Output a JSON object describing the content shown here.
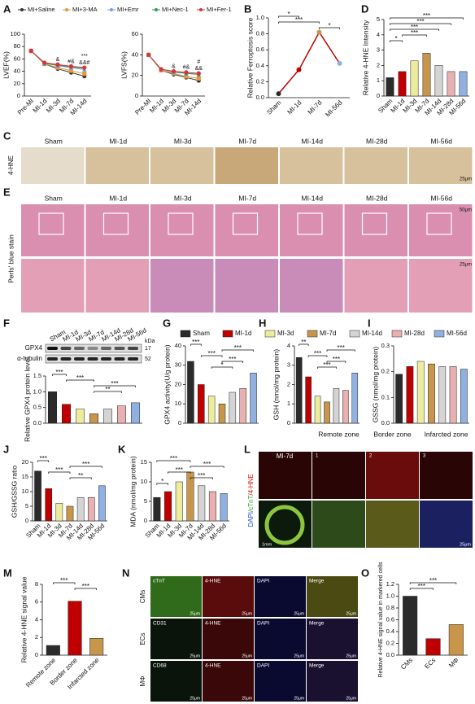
{
  "panel_letters": [
    "A",
    "B",
    "C",
    "D",
    "E",
    "F",
    "G",
    "H",
    "I",
    "J",
    "K",
    "L",
    "M",
    "N",
    "O"
  ],
  "bar_legend": {
    "names": [
      "Sham",
      "MI-1d",
      "MI-3d",
      "MI-7d",
      "MI-14d",
      "MI-28d",
      "MI-56d"
    ],
    "colors": [
      "#2b2b2b",
      "#c00000",
      "#ecec9c",
      "#c8964b",
      "#d4d4d4",
      "#e8b0b0",
      "#8fb0e0"
    ]
  },
  "image_panels": {
    "C": {
      "row_label": "4-HNE",
      "columns": [
        "Sham",
        "MI-1d",
        "MI-3d",
        "MI-7d",
        "MI-14d",
        "MI-28d",
        "MI-56d"
      ],
      "scale": "25μm"
    },
    "E": {
      "row_label": "Perls' blue stain",
      "columns": [
        "Sham",
        "MI-1d",
        "MI-3d",
        "MI-7d",
        "MI-14d",
        "MI-28d",
        "MI-56d"
      ],
      "scales": [
        "50μm",
        "25μm"
      ]
    },
    "F_blot": {
      "lanes": [
        "Sham",
        "MI-1d",
        "MI-3d",
        "MI-7d",
        "MI-14d",
        "MI-28d",
        "MI-56d"
      ],
      "bands": [
        "GPX4",
        "α-tubulin"
      ],
      "unit": "kDa",
      "sizes": [
        17,
        52
      ]
    },
    "L": {
      "title": "MI-7d",
      "zones": [
        "Remote zone",
        "Border zone",
        "Infarcted zone"
      ],
      "stain": [
        "DAPI",
        "/cTnT",
        "/4-HNE"
      ],
      "insets": [
        "1",
        "2",
        "3"
      ],
      "scales": [
        "1mm",
        "25μm"
      ]
    },
    "N": {
      "rows": [
        "CMs",
        "ECs",
        "MΦ"
      ],
      "markers": [
        "cTnT",
        "CD31",
        "CD68"
      ],
      "channels": [
        "4-HNE",
        "DAPI",
        "Merge"
      ],
      "scale": "25μm"
    }
  },
  "chart_data": [
    {
      "type": "line",
      "ylabel": "LVEF(%)",
      "categories": [
        "Pre-MI",
        "MI-1d",
        "MI-3d",
        "MI-7d",
        "MI-14d"
      ],
      "ylim": [
        0,
        100
      ],
      "yticks": [
        0,
        20,
        40,
        60,
        80,
        100
      ],
      "series": [
        {
          "name": "MI+Saline",
          "color": "#333333",
          "marker": "circle",
          "values": [
            73,
            52,
            44,
            38,
            32
          ]
        },
        {
          "name": "MI+3-MA",
          "color": "#e39a3b",
          "marker": "square",
          "values": [
            73,
            52,
            46,
            41,
            36
          ]
        },
        {
          "name": "MI+Emr",
          "color": "#6fa0dc",
          "marker": "triangle",
          "values": [
            73,
            53,
            49,
            46,
            43
          ]
        },
        {
          "name": "MI+Nec-1",
          "color": "#2e9e52",
          "marker": "diamond",
          "values": [
            73,
            53,
            50,
            47,
            45
          ]
        },
        {
          "name": "MI+Fer-1",
          "color": "#d8323c",
          "marker": "circle",
          "values": [
            73,
            54,
            51,
            48,
            46
          ]
        }
      ],
      "annotations": [
        {
          "text": "&",
          "at": 2
        },
        {
          "text": "#&",
          "at": 3
        },
        {
          "text": "&&#",
          "at": 4
        },
        {
          "text": "***",
          "at": 4
        }
      ]
    },
    {
      "type": "line",
      "ylabel": "LVFS(%)",
      "categories": [
        "Pre-MI",
        "MI-1d",
        "MI-3d",
        "MI-7d",
        "MI-14d"
      ],
      "ylim": [
        0,
        60
      ],
      "yticks": [
        0,
        20,
        40,
        60
      ],
      "series": [
        {
          "color": "#333333",
          "marker": "circle",
          "values": [
            40,
            25,
            21,
            18,
            15
          ]
        },
        {
          "color": "#e39a3b",
          "marker": "square",
          "values": [
            40,
            25,
            22,
            19,
            17
          ]
        },
        {
          "color": "#6fa0dc",
          "marker": "triangle",
          "values": [
            40,
            26,
            23,
            22,
            21
          ]
        },
        {
          "color": "#2e9e52",
          "marker": "diamond",
          "values": [
            40,
            26,
            24,
            22,
            21
          ]
        },
        {
          "color": "#d8323c",
          "marker": "circle",
          "values": [
            40,
            26,
            24,
            23,
            22
          ]
        }
      ],
      "annotations": [
        {
          "text": "&",
          "at": 2
        },
        {
          "text": "#&",
          "at": 3
        },
        {
          "text": "&&",
          "at": 4
        },
        {
          "text": "#",
          "at": 4
        }
      ]
    },
    {
      "type": "point_line",
      "ylabel": "Relative Ferroptosis score",
      "categories": [
        "Sham",
        "MI-1d",
        "MI-7d",
        "MI-56d"
      ],
      "values": [
        0.05,
        0.35,
        0.82,
        0.43
      ],
      "color": "#c00000",
      "point_colors": [
        "#2b2b2b",
        "#c00000",
        "#c8964b",
        "#8fb0e0"
      ],
      "ylim": [
        0,
        1.0
      ],
      "yticks": [
        {
          "value": 0,
          "label": "0.0"
        },
        0.2,
        0.4,
        0.6,
        0.8,
        {
          "value": 1,
          "label": "1.0"
        }
      ],
      "annotations": [
        {
          "text": "*",
          "from": 0,
          "to": 1
        },
        {
          "text": "***",
          "from": 0,
          "to": 2
        },
        {
          "text": "*",
          "from": 2,
          "to": 3
        }
      ]
    },
    {
      "type": "bar",
      "ylabel": "Relative 4-HNE Intensity",
      "categories": [
        "Sham",
        "MI-1d",
        "MI-3d",
        "MI-7d",
        "MI-14d",
        "MI-28d",
        "MI-56d"
      ],
      "values": [
        1.2,
        1.6,
        2.3,
        2.8,
        2.0,
        1.6,
        1.6
      ],
      "colors": [
        "#2b2b2b",
        "#c00000",
        "#ecec9c",
        "#c8964b",
        "#d4d4d4",
        "#e8b0b0",
        "#8fb0e0"
      ],
      "ylim": [
        0,
        5
      ],
      "yticks": [
        0,
        1,
        2,
        3,
        4,
        5
      ],
      "annotations": [
        {
          "text": "***",
          "from": 0,
          "to": 6
        },
        {
          "text": "***",
          "from": 0,
          "to": 5
        },
        {
          "text": "***",
          "from": 0,
          "to": 4
        },
        {
          "text": "***",
          "from": 1,
          "to": 3
        },
        {
          "text": "*",
          "from": 0,
          "to": 1
        }
      ]
    },
    {
      "type": "bar",
      "ylabel": "Relative GPX4 protein level",
      "categories": [
        "Sham",
        "MI-1d",
        "MI-3d",
        "MI-7d",
        "MI-14d",
        "MI-28d",
        "MI-56d"
      ],
      "values": [
        1.0,
        0.6,
        0.45,
        0.3,
        0.45,
        0.55,
        0.65
      ],
      "colors": [
        "#2b2b2b",
        "#c00000",
        "#ecec9c",
        "#c8964b",
        "#d4d4d4",
        "#e8b0b0",
        "#8fb0e0"
      ],
      "ylim": [
        0,
        1.5
      ],
      "yticks": [
        {
          "value": 0,
          "label": "0.0"
        },
        0.5,
        {
          "value": 1,
          "label": "1.0"
        },
        1.5
      ],
      "hide_categories": true,
      "annotations": [
        {
          "text": "***",
          "from": 0,
          "to": 1
        },
        {
          "text": "***",
          "from": 1,
          "to": 3
        },
        {
          "text": "***",
          "from": 3,
          "to": 6
        },
        {
          "text": "**",
          "from": 3,
          "to": 5
        }
      ]
    },
    {
      "type": "bar",
      "ylabel": "GPX4 activity(U/g protein)",
      "categories": [
        "Sham",
        "MI-1d",
        "MI-3d",
        "MI-7d",
        "MI-14d",
        "MI-28d",
        "MI-56d"
      ],
      "values": [
        32,
        20,
        14,
        10,
        16,
        18,
        26
      ],
      "colors": [
        "#2b2b2b",
        "#c00000",
        "#ecec9c",
        "#c8964b",
        "#d4d4d4",
        "#e8b0b0",
        "#8fb0e0"
      ],
      "ylim": [
        0,
        40
      ],
      "yticks": [
        0,
        10,
        20,
        30,
        40
      ],
      "hide_categories": true,
      "annotations": [
        {
          "text": "***",
          "from": 0,
          "to": 1
        },
        {
          "text": "***",
          "from": 3,
          "to": 6
        },
        {
          "text": "***",
          "from": 1,
          "to": 3
        },
        {
          "text": "***",
          "from": 3,
          "to": 5
        },
        {
          "text": "*",
          "from": 2,
          "to": 4
        }
      ]
    },
    {
      "type": "bar",
      "ylabel": "GSH (nmol/mg protein)",
      "categories": [
        "Sham",
        "MI-1d",
        "MI-3d",
        "MI-7d",
        "MI-14d",
        "MI-28d",
        "MI-56d"
      ],
      "values": [
        3.4,
        2.4,
        1.4,
        1.1,
        1.8,
        1.7,
        2.6
      ],
      "colors": [
        "#2b2b2b",
        "#c00000",
        "#ecec9c",
        "#c8964b",
        "#d4d4d4",
        "#e8b0b0",
        "#8fb0e0"
      ],
      "ylim": [
        0,
        4
      ],
      "yticks": [
        0,
        1,
        2,
        3,
        4
      ],
      "hide_categories": true,
      "annotations": [
        {
          "text": "**",
          "from": 0,
          "to": 1
        },
        {
          "text": "***",
          "from": 3,
          "to": 6
        },
        {
          "text": "***",
          "from": 1,
          "to": 3
        },
        {
          "text": "***",
          "from": 3,
          "to": 5
        },
        {
          "text": "***",
          "from": 2,
          "to": 4
        }
      ]
    },
    {
      "type": "bar",
      "ylabel": "GSSG (nmol/mg protein)",
      "categories": [
        "Sham",
        "MI-1d",
        "MI-3d",
        "MI-7d",
        "MI-14d",
        "MI-28d",
        "MI-56d"
      ],
      "values": [
        0.19,
        0.22,
        0.24,
        0.23,
        0.22,
        0.22,
        0.21
      ],
      "colors": [
        "#2b2b2b",
        "#c00000",
        "#ecec9c",
        "#c8964b",
        "#d4d4d4",
        "#e8b0b0",
        "#8fb0e0"
      ],
      "ylim": [
        0,
        0.3
      ],
      "yticks": [
        {
          "value": 0,
          "label": "0.0"
        },
        0.1,
        0.2,
        0.3
      ],
      "hide_categories": true,
      "annotations": []
    },
    {
      "type": "bar",
      "ylabel": "GSH/GSSG ratio",
      "categories": [
        "Sham",
        "MI-1d",
        "MI-3d",
        "MI-7d",
        "MI-14d",
        "MI-28d",
        "MI-56d"
      ],
      "values": [
        17,
        11,
        6,
        5,
        8,
        8,
        12
      ],
      "colors": [
        "#2b2b2b",
        "#c00000",
        "#ecec9c",
        "#c8964b",
        "#d4d4d4",
        "#e8b0b0",
        "#8fb0e0"
      ],
      "ylim": [
        0,
        20
      ],
      "yticks": [
        0,
        5,
        10,
        15,
        20
      ],
      "annotations": [
        {
          "text": "***",
          "from": 0,
          "to": 1
        },
        {
          "text": "***",
          "from": 3,
          "to": 6
        },
        {
          "text": "***",
          "from": 1,
          "to": 3
        },
        {
          "text": "**",
          "from": 3,
          "to": 5
        }
      ]
    },
    {
      "type": "bar",
      "ylabel": "MDA (nmol/mg protein)",
      "categories": [
        "Sham",
        "MI-1d",
        "MI-3d",
        "MI-7d",
        "MI-14d",
        "MI-28d",
        "MI-56d"
      ],
      "values": [
        6,
        7.5,
        10,
        12.5,
        9,
        7.5,
        7
      ],
      "colors": [
        "#2b2b2b",
        "#c00000",
        "#ecec9c",
        "#c8964b",
        "#d4d4d4",
        "#e8b0b0",
        "#8fb0e0"
      ],
      "ylim": [
        0,
        15
      ],
      "yticks": [
        0,
        5,
        10,
        15
      ],
      "annotations": [
        {
          "text": "***",
          "from": 0,
          "to": 3
        },
        {
          "text": "***",
          "from": 3,
          "to": 6
        },
        {
          "text": "***",
          "from": 1,
          "to": 3
        },
        {
          "text": "***",
          "from": 3,
          "to": 5
        },
        {
          "text": "*",
          "from": 0,
          "to": 1
        }
      ]
    },
    {
      "type": "bar",
      "ylabel": "Relative 4-HNE signal value",
      "categories": [
        "Remote zone",
        "Border zone",
        "Infarcted zone"
      ],
      "values": [
        1.1,
        6.1,
        1.9
      ],
      "colors": [
        "#2b2b2b",
        "#c00000",
        "#c8964b"
      ],
      "ylim": [
        0,
        8
      ],
      "yticks": [
        0,
        2,
        4,
        6,
        8
      ],
      "annotations": [
        {
          "text": "***",
          "from": 0,
          "to": 1
        },
        {
          "text": "***",
          "from": 1,
          "to": 2
        }
      ]
    },
    {
      "type": "bar",
      "ylabel": "Relative 4-HNE signal value in markered cells",
      "categories": [
        "CMs",
        "ECs",
        "MΦ"
      ],
      "values": [
        1.0,
        0.28,
        0.52
      ],
      "colors": [
        "#2b2b2b",
        "#c00000",
        "#c8964b"
      ],
      "ylim": [
        0,
        1.2
      ],
      "yticks": [
        {
          "value": 0,
          "label": "0.0"
        },
        0.2,
        0.4,
        0.6,
        0.8,
        {
          "value": 1,
          "label": "1.0"
        },
        1.2
      ],
      "annotations": [
        {
          "text": "***",
          "from": 0,
          "to": 2
        },
        {
          "text": "***",
          "from": 0,
          "to": 1
        }
      ]
    }
  ]
}
